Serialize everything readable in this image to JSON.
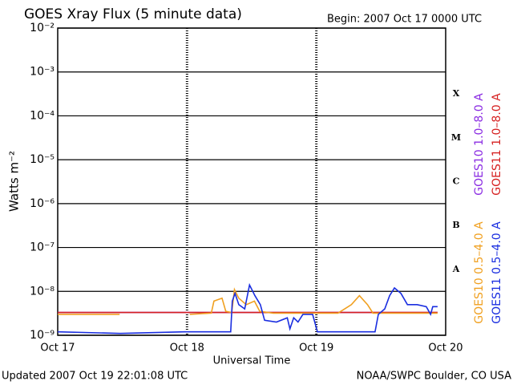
{
  "chart_data": {
    "type": "line",
    "title": "GOES Xray Flux (5 minute data)",
    "subtitle": "Begin:  2007 Oct 17 0000 UTC",
    "y_label": "Watts m⁻²",
    "x_label": "Universal Time",
    "footer_left": "Updated 2007 Oct 19 22:01:08 UTC",
    "footer_right": "NOAA/SWPC Boulder, CO USA",
    "log_scale": true,
    "grid": true,
    "xlim": [
      0,
      72
    ],
    "xticks": [
      {
        "value": 0,
        "label": "Oct 17"
      },
      {
        "value": 24,
        "label": "Oct 18"
      },
      {
        "value": 48,
        "label": "Oct 19"
      },
      {
        "value": 72,
        "label": "Oct 20"
      }
    ],
    "ylim": [
      1e-09,
      0.01
    ],
    "yticks": [
      {
        "value": 1e-09,
        "label": "10⁻⁹"
      },
      {
        "value": 1e-08,
        "label": "10⁻⁸"
      },
      {
        "value": 1e-07,
        "label": "10⁻⁷"
      },
      {
        "value": 1e-06,
        "label": "10⁻⁶"
      },
      {
        "value": 1e-05,
        "label": "10⁻⁵"
      },
      {
        "value": 0.0001,
        "label": "10⁻⁴"
      },
      {
        "value": 0.001,
        "label": "10⁻³"
      },
      {
        "value": 0.01,
        "label": "10⁻²"
      }
    ],
    "flare_classes": [
      "A",
      "B",
      "C",
      "M",
      "X"
    ],
    "series": [
      {
        "name": "GOES10 1.0–8.0 A",
        "color": "#8a2be2",
        "group": "long",
        "x": [
          0,
          70.5
        ],
        "values": [
          3.3e-09,
          3.3e-09
        ]
      },
      {
        "name": "GOES11 1.0–8.0 A",
        "color": "#d62020",
        "group": "long",
        "x": [
          0,
          70.5
        ],
        "values": [
          3.3e-09,
          3.3e-09
        ]
      },
      {
        "name": "GOES10 0.5–4.0 A",
        "color": "#f0a020",
        "group": "short",
        "x": [
          0,
          11.5,
          18,
          24.5,
          28.5,
          29,
          30.5,
          31.2,
          32.3,
          32.8,
          33.6,
          35,
          36.5,
          37.5,
          40,
          52,
          54.5,
          56,
          57.5,
          58.5,
          70.5
        ],
        "values": [
          3e-09,
          3e-09,
          null,
          3e-09,
          3.2e-09,
          6e-09,
          7e-09,
          3.5e-09,
          3.3e-09,
          1.1e-08,
          7e-09,
          5e-09,
          6e-09,
          3.5e-09,
          3.2e-09,
          3.2e-09,
          5e-09,
          8e-09,
          5e-09,
          3.2e-09,
          3.2e-09
        ]
      },
      {
        "name": "GOES11 0.5–4.0 A",
        "color": "#1a2ee0",
        "group": "short",
        "x": [
          0,
          11.6,
          23.5,
          32.1,
          32.4,
          32.9,
          33.6,
          34.7,
          35.6,
          36.6,
          37.6,
          38.4,
          40.6,
          42.6,
          43.1,
          43.8,
          44.6,
          45.5,
          47.3,
          48.2,
          53.3,
          58.9,
          59.5,
          60.7,
          61.6,
          62.5,
          63.7,
          64.9,
          66.7,
          68.4,
          69.2,
          69.6,
          70.5
        ],
        "values": [
          1.2e-09,
          1.1e-09,
          1.2e-09,
          1.2e-09,
          6e-09,
          9e-09,
          5e-09,
          4e-09,
          1.4e-08,
          8e-09,
          5e-09,
          2.2e-09,
          2e-09,
          2.5e-09,
          1.4e-09,
          2.5e-09,
          2e-09,
          3e-09,
          3e-09,
          1.2e-09,
          1.2e-09,
          1.2e-09,
          3e-09,
          4e-09,
          8e-09,
          1.2e-08,
          9e-09,
          5e-09,
          5e-09,
          4.5e-09,
          3e-09,
          4.5e-09,
          4.5e-09
        ]
      }
    ]
  }
}
